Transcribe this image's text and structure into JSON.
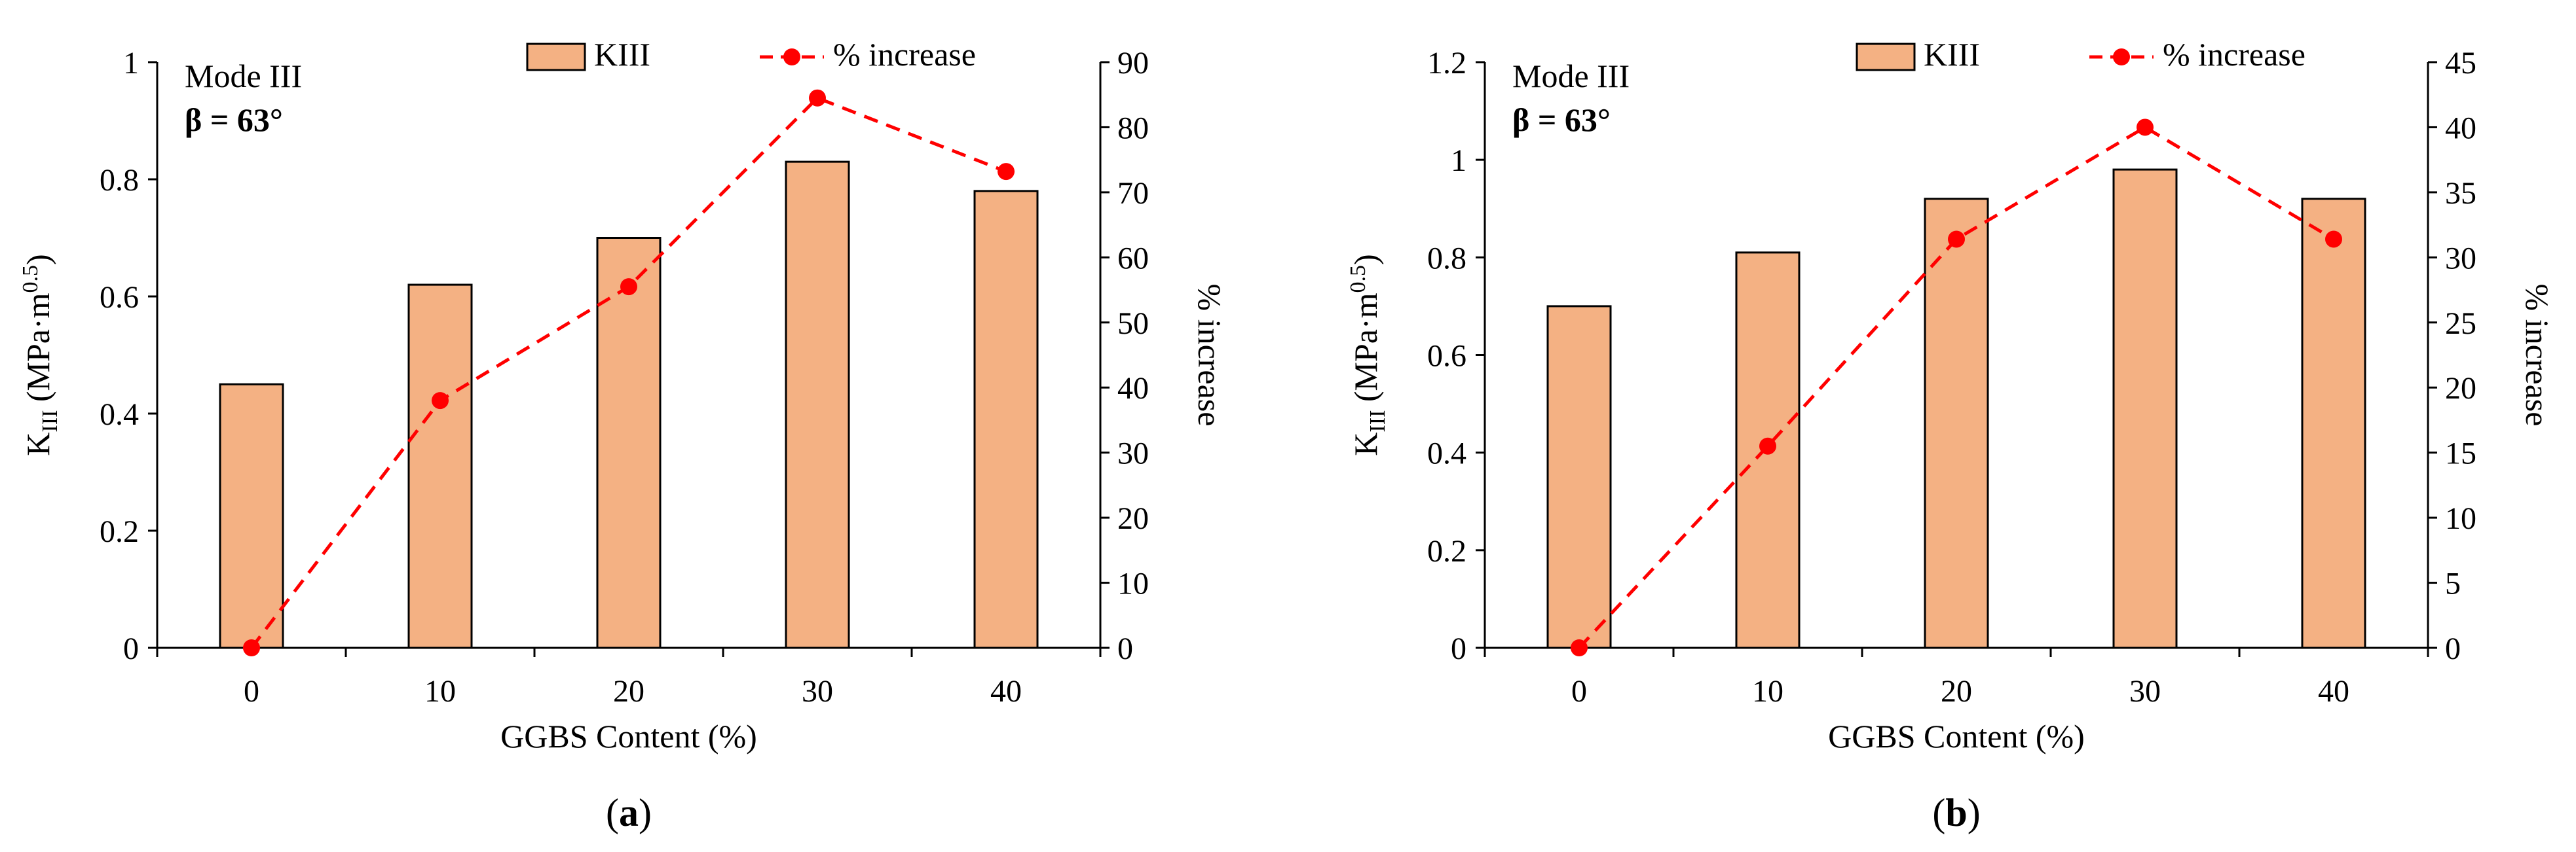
{
  "chart_data": [
    {
      "type": "bar+line",
      "panel_label": "a",
      "annotation": {
        "mode": "Mode III",
        "beta": "β = 63°"
      },
      "categories": [
        "0",
        "10",
        "20",
        "30",
        "40"
      ],
      "xlabel": "GGBS Content (%)",
      "ylabel": {
        "main": "K",
        "sub": "III",
        "unit": " (MPa·m",
        "sup": "0.5",
        "close": ")"
      },
      "y2label": "% increase",
      "ylim": [
        0,
        1
      ],
      "yticks": [
        0,
        0.2,
        0.4,
        0.6,
        0.8,
        1
      ],
      "y2lim": [
        0,
        90
      ],
      "y2ticks": [
        0,
        10,
        20,
        30,
        40,
        50,
        60,
        70,
        80,
        90
      ],
      "series": [
        {
          "name": "KIII",
          "type": "bar",
          "axis": "left",
          "values": [
            0.45,
            0.62,
            0.7,
            0.83,
            0.78
          ]
        },
        {
          "name": "% increase",
          "type": "line",
          "axis": "right",
          "values": [
            0,
            38,
            55.5,
            84.5,
            73.2
          ]
        }
      ],
      "legend": [
        "KIII",
        "% increase"
      ]
    },
    {
      "type": "bar+line",
      "panel_label": "b",
      "annotation": {
        "mode": "Mode III",
        "beta": "β = 63°"
      },
      "categories": [
        "0",
        "10",
        "20",
        "30",
        "40"
      ],
      "xlabel": "GGBS Content (%)",
      "ylabel": {
        "main": "K",
        "sub": "III",
        "unit": " (MPa·m",
        "sup": "0.5",
        "close": ")"
      },
      "y2label": "% increase",
      "ylim": [
        0,
        1.2
      ],
      "yticks": [
        0,
        0.2,
        0.4,
        0.6,
        0.8,
        1,
        1.2
      ],
      "y2lim": [
        0,
        45
      ],
      "y2ticks": [
        0,
        5,
        10,
        15,
        20,
        25,
        30,
        35,
        40,
        45
      ],
      "series": [
        {
          "name": "KIII",
          "type": "bar",
          "axis": "left",
          "values": [
            0.7,
            0.81,
            0.92,
            0.98,
            0.92
          ]
        },
        {
          "name": "% increase",
          "type": "line",
          "axis": "right",
          "values": [
            0,
            15.5,
            31.4,
            40,
            31.4
          ]
        }
      ],
      "legend": [
        "KIII",
        "% increase"
      ]
    }
  ],
  "colors": {
    "bar_fill": "#f4b183",
    "bar_stroke": "#000000",
    "line": "#ff0000",
    "axis": "#000000"
  }
}
